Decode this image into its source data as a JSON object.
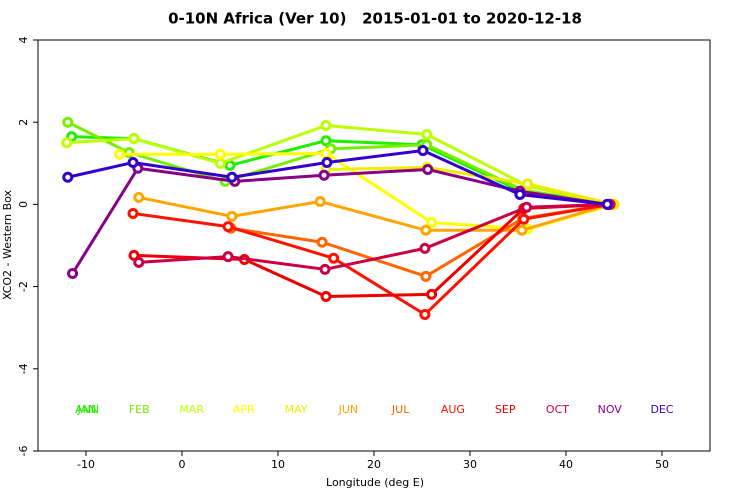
{
  "chart_data": {
    "type": "line",
    "title": "0-10N Africa (Ver 10)   2015-01-01 to 2020-12-18",
    "x_label": "Longitude (deg E)",
    "y_label": "XCO2 - Western Box",
    "xlim": [
      -15,
      55
    ],
    "xticks": [
      -10,
      0,
      10,
      20,
      30,
      40,
      50
    ],
    "ylim": [
      -6,
      4
    ],
    "yticks": [
      -6,
      -4,
      -2,
      0,
      2,
      4
    ],
    "overlay_label": {
      "text": "ANN",
      "color": "#22ee00"
    },
    "series": [
      {
        "name": "JAN",
        "color": "#22ee00",
        "x": [
          -11.5,
          -5,
          5,
          15,
          25,
          35.5,
          44.5
        ],
        "values": [
          1.65,
          1.6,
          0.95,
          1.55,
          1.45,
          0.3,
          0.0
        ]
      },
      {
        "name": "FEB",
        "color": "#77ee00",
        "x": [
          -11.9,
          -5.5,
          4.5,
          15.5,
          25.5,
          35.5,
          44.5
        ],
        "values": [
          2.0,
          1.26,
          0.56,
          1.35,
          1.45,
          0.35,
          0.0
        ]
      },
      {
        "name": "MAR",
        "color": "#bbff00",
        "x": [
          -12,
          -5,
          4,
          15,
          25.5,
          36,
          44.5
        ],
        "values": [
          1.5,
          1.6,
          1.0,
          1.92,
          1.7,
          0.45,
          0.0
        ]
      },
      {
        "name": "APR",
        "color": "#ffff00",
        "x": [
          -6.5,
          4,
          15,
          26,
          36,
          45
        ],
        "values": [
          1.22,
          1.22,
          1.24,
          -0.44,
          -0.6,
          0.0
        ]
      },
      {
        "name": "MAY",
        "color": "#eeee00",
        "x": [
          15,
          25.5,
          36,
          45
        ],
        "values": [
          0.85,
          0.9,
          0.5,
          0.0
        ]
      },
      {
        "name": "JUN",
        "color": "#ffa500",
        "x": [
          -4.5,
          5.2,
          14.4,
          25.4,
          35.4,
          44.6
        ],
        "values": [
          0.17,
          -0.29,
          0.07,
          -0.63,
          -0.63,
          0.0
        ]
      },
      {
        "name": "JUL",
        "color": "#ff6600",
        "x": [
          5.1,
          14.6,
          25.4,
          35.5,
          44.6
        ],
        "values": [
          -0.58,
          -0.92,
          -1.75,
          -0.34,
          0.0
        ]
      },
      {
        "name": "AUG",
        "color": "#ff1100",
        "x": [
          -5.1,
          4.8,
          15.8,
          25.3,
          35.6,
          44.6
        ],
        "values": [
          -0.22,
          -0.54,
          -1.31,
          -2.68,
          -0.36,
          0.0
        ]
      },
      {
        "name": "SEP",
        "color": "#ee0000",
        "x": [
          -5,
          6.5,
          15,
          26,
          35.6,
          44.5
        ],
        "values": [
          -1.24,
          -1.34,
          -2.24,
          -2.19,
          -0.1,
          0.0
        ]
      },
      {
        "name": "OCT",
        "color": "#cc0044",
        "x": [
          -4.5,
          4.8,
          14.9,
          25.3,
          35.9,
          44.5
        ],
        "values": [
          -1.41,
          -1.27,
          -1.58,
          -1.07,
          -0.07,
          0.0
        ]
      },
      {
        "name": "NOV",
        "color": "#880088",
        "x": [
          -11.4,
          -4.6,
          5.5,
          14.8,
          25.6,
          35.2,
          44.3
        ],
        "values": [
          -1.68,
          0.88,
          0.56,
          0.71,
          0.85,
          0.32,
          0.0
        ]
      },
      {
        "name": "DEC",
        "color": "#3300cc",
        "x": [
          -11.9,
          -5.1,
          5.2,
          15.1,
          25.1,
          35.2,
          44.3
        ],
        "values": [
          0.66,
          1.02,
          0.66,
          1.02,
          1.31,
          0.24,
          0.0
        ]
      }
    ]
  }
}
